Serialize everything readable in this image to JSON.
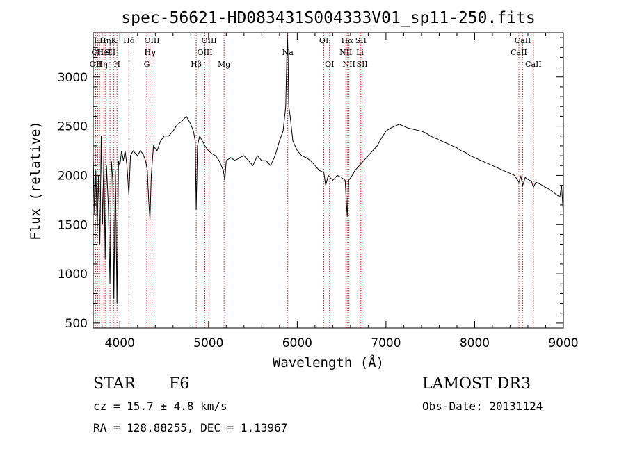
{
  "chart_data": {
    "type": "line",
    "title": "spec-56621-HD083431S004333V01_sp11-250.fits",
    "xlabel": "Wavelength (Å)",
    "ylabel": "Flux (relative)",
    "xlim": [
      3700,
      9000
    ],
    "ylim": [
      450,
      3450
    ],
    "x_ticks": [
      4000,
      5000,
      6000,
      7000,
      8000,
      9000
    ],
    "y_ticks": [
      500,
      1000,
      1500,
      2000,
      2500,
      3000
    ],
    "grid": false,
    "series": [
      {
        "color": "#000000",
        "points": [
          [
            3700,
            2180
          ],
          [
            3715,
            1600
          ],
          [
            3730,
            2050
          ],
          [
            3745,
            1450
          ],
          [
            3760,
            2000
          ],
          [
            3775,
            1300
          ],
          [
            3790,
            2400
          ],
          [
            3805,
            1500
          ],
          [
            3820,
            2200
          ],
          [
            3835,
            1150
          ],
          [
            3850,
            2100
          ],
          [
            3870,
            1700
          ],
          [
            3889,
            900
          ],
          [
            3905,
            2150
          ],
          [
            3920,
            1950
          ],
          [
            3933,
            750
          ],
          [
            3950,
            2050
          ],
          [
            3968,
            700
          ],
          [
            3985,
            2150
          ],
          [
            4000,
            2100
          ],
          [
            4020,
            2250
          ],
          [
            4040,
            2150
          ],
          [
            4060,
            2250
          ],
          [
            4080,
            2100
          ],
          [
            4102,
            1800
          ],
          [
            4120,
            2200
          ],
          [
            4150,
            2250
          ],
          [
            4180,
            2220
          ],
          [
            4200,
            2200
          ],
          [
            4230,
            2250
          ],
          [
            4260,
            2220
          ],
          [
            4290,
            2150
          ],
          [
            4310,
            2050
          ],
          [
            4325,
            1750
          ],
          [
            4340,
            1550
          ],
          [
            4355,
            2000
          ],
          [
            4380,
            2300
          ],
          [
            4420,
            2250
          ],
          [
            4460,
            2350
          ],
          [
            4500,
            2400
          ],
          [
            4550,
            2400
          ],
          [
            4600,
            2450
          ],
          [
            4650,
            2520
          ],
          [
            4700,
            2550
          ],
          [
            4750,
            2600
          ],
          [
            4800,
            2520
          ],
          [
            4830,
            2450
          ],
          [
            4850,
            2350
          ],
          [
            4861,
            1650
          ],
          [
            4875,
            2300
          ],
          [
            4900,
            2400
          ],
          [
            4930,
            2350
          ],
          [
            4960,
            2300
          ],
          [
            5000,
            2250
          ],
          [
            5040,
            2220
          ],
          [
            5080,
            2200
          ],
          [
            5120,
            2150
          ],
          [
            5167,
            2050
          ],
          [
            5183,
            1950
          ],
          [
            5200,
            2150
          ],
          [
            5250,
            2180
          ],
          [
            5300,
            2150
          ],
          [
            5350,
            2180
          ],
          [
            5400,
            2200
          ],
          [
            5450,
            2150
          ],
          [
            5500,
            2100
          ],
          [
            5550,
            2200
          ],
          [
            5600,
            2150
          ],
          [
            5650,
            2150
          ],
          [
            5700,
            2100
          ],
          [
            5750,
            2200
          ],
          [
            5800,
            2350
          ],
          [
            5840,
            2450
          ],
          [
            5870,
            2700
          ],
          [
            5888,
            3450
          ],
          [
            5896,
            3200
          ],
          [
            5905,
            2700
          ],
          [
            5920,
            2600
          ],
          [
            5950,
            2350
          ],
          [
            6000,
            2250
          ],
          [
            6050,
            2200
          ],
          [
            6100,
            2180
          ],
          [
            6150,
            2150
          ],
          [
            6200,
            2100
          ],
          [
            6250,
            2050
          ],
          [
            6300,
            2030
          ],
          [
            6320,
            1900
          ],
          [
            6350,
            2000
          ],
          [
            6400,
            1950
          ],
          [
            6450,
            2000
          ],
          [
            6500,
            1980
          ],
          [
            6540,
            1950
          ],
          [
            6563,
            1580
          ],
          [
            6580,
            1950
          ],
          [
            6620,
            2000
          ],
          [
            6650,
            2050
          ],
          [
            6700,
            2100
          ],
          [
            6750,
            2150
          ],
          [
            6800,
            2200
          ],
          [
            6850,
            2250
          ],
          [
            6900,
            2300
          ],
          [
            6950,
            2380
          ],
          [
            7000,
            2450
          ],
          [
            7050,
            2480
          ],
          [
            7100,
            2500
          ],
          [
            7150,
            2520
          ],
          [
            7200,
            2500
          ],
          [
            7250,
            2480
          ],
          [
            7300,
            2470
          ],
          [
            7350,
            2460
          ],
          [
            7400,
            2450
          ],
          [
            7450,
            2430
          ],
          [
            7500,
            2400
          ],
          [
            7550,
            2380
          ],
          [
            7600,
            2360
          ],
          [
            7650,
            2340
          ],
          [
            7700,
            2320
          ],
          [
            7750,
            2300
          ],
          [
            7800,
            2280
          ],
          [
            7850,
            2250
          ],
          [
            7900,
            2230
          ],
          [
            7950,
            2200
          ],
          [
            8000,
            2180
          ],
          [
            8050,
            2160
          ],
          [
            8100,
            2140
          ],
          [
            8150,
            2120
          ],
          [
            8200,
            2100
          ],
          [
            8250,
            2080
          ],
          [
            8300,
            2060
          ],
          [
            8350,
            2040
          ],
          [
            8400,
            2020
          ],
          [
            8450,
            2000
          ],
          [
            8498,
            1930
          ],
          [
            8520,
            1990
          ],
          [
            8542,
            1900
          ],
          [
            8570,
            1980
          ],
          [
            8600,
            1960
          ],
          [
            8640,
            1940
          ],
          [
            8662,
            1880
          ],
          [
            8690,
            1930
          ],
          [
            8720,
            1920
          ],
          [
            8760,
            1900
          ],
          [
            8800,
            1880
          ],
          [
            8840,
            1860
          ],
          [
            8870,
            1840
          ],
          [
            8900,
            1820
          ],
          [
            8930,
            1800
          ],
          [
            8960,
            1780
          ],
          [
            8980,
            1900
          ],
          [
            8990,
            1750
          ],
          [
            9000,
            1600
          ]
        ]
      }
    ],
    "lines": [
      {
        "x": 3727,
        "label": "OII",
        "row": 2,
        "anchor": "middle"
      },
      {
        "x": 3750,
        "label": "OII",
        "row": 1,
        "anchor": "middle"
      },
      {
        "x": 3771,
        "label": "Hθ",
        "row": 0,
        "anchor": "middle"
      },
      {
        "x": 3798,
        "label": "Hη",
        "row": 2,
        "anchor": "middle"
      },
      {
        "x": 3820,
        "label": "HeI",
        "row": 1,
        "anchor": "middle"
      },
      {
        "x": 3835,
        "label": "Hη",
        "row": 0,
        "anchor": "middle"
      },
      {
        "x": 3889,
        "label": "SII",
        "row": 1,
        "anchor": "middle"
      },
      {
        "x": 3933,
        "label": "K",
        "row": 0,
        "anchor": "middle"
      },
      {
        "x": 3968,
        "label": "H",
        "row": 2,
        "anchor": "middle"
      },
      {
        "x": 4102,
        "label": "Hδ",
        "row": 0,
        "anchor": "middle"
      },
      {
        "x": 4304,
        "label": "G",
        "row": 2,
        "anchor": "middle"
      },
      {
        "x": 4340,
        "label": "Hγ",
        "row": 1,
        "anchor": "middle"
      },
      {
        "x": 4363,
        "label": "OIII",
        "row": 0,
        "anchor": "middle"
      },
      {
        "x": 4861,
        "label": "Hβ",
        "row": 2,
        "anchor": "middle"
      },
      {
        "x": 4959,
        "label": "OIII",
        "row": 1,
        "anchor": "middle"
      },
      {
        "x": 5007,
        "label": "OIII",
        "row": 0,
        "anchor": "middle"
      },
      {
        "x": 5175,
        "label": "Mg",
        "row": 2,
        "anchor": "middle"
      },
      {
        "x": 5893,
        "label": "Na",
        "row": 1,
        "anchor": "middle"
      },
      {
        "x": 6300,
        "label": "OI",
        "row": 0,
        "anchor": "middle"
      },
      {
        "x": 6364,
        "label": "OI",
        "row": 2,
        "anchor": "middle"
      },
      {
        "x": 6548,
        "label": "NII",
        "row": 1,
        "anchor": "middle"
      },
      {
        "x": 6563,
        "label": "Hα",
        "row": 0,
        "anchor": "middle"
      },
      {
        "x": 6583,
        "label": "NII",
        "row": 2,
        "anchor": "middle"
      },
      {
        "x": 6707,
        "label": "Li",
        "row": 1,
        "anchor": "middle"
      },
      {
        "x": 6717,
        "label": "SII",
        "row": 0,
        "anchor": "middle"
      },
      {
        "x": 6731,
        "label": "SII",
        "row": 2,
        "anchor": "middle"
      },
      {
        "x": 8498,
        "label": "CaII",
        "row": 1,
        "anchor": "middle"
      },
      {
        "x": 8542,
        "label": "CaII",
        "row": 0,
        "anchor": "middle"
      },
      {
        "x": 8662,
        "label": "CaII",
        "row": 2,
        "anchor": "middle"
      }
    ],
    "line_color": "#b22222"
  },
  "info": {
    "class_label": "STAR",
    "subclass": "F6",
    "survey": "LAMOST DR3",
    "cz": "cz = 15.7 ± 4.8 km/s",
    "obs_date": "Obs-Date: 20131124",
    "coords": "RA = 128.88255, DEC =    1.13967"
  }
}
